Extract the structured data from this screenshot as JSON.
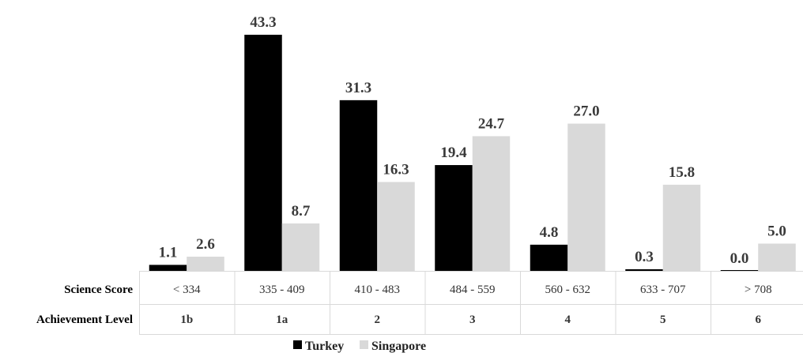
{
  "chart_data": {
    "type": "bar",
    "categories": [
      "< 334",
      "335 - 409",
      "410 - 483",
      "484 - 559",
      "560 - 632",
      "633 - 707",
      "> 708"
    ],
    "achievement_levels": [
      "1b",
      "1a",
      "2",
      "3",
      "4",
      "5",
      "6"
    ],
    "row_labels": {
      "score": "Science Score",
      "level": "Achievement Level"
    },
    "series": [
      {
        "name": "Turkey",
        "color": "#000000",
        "values": [
          1.1,
          43.3,
          31.3,
          19.4,
          4.8,
          0.3,
          0.0
        ],
        "labels": [
          "1.1",
          "43.3",
          "31.3",
          "19.4",
          "4.8",
          "0.3",
          "0.0"
        ]
      },
      {
        "name": "Singapore",
        "color": "#d9d9d9",
        "values": [
          2.6,
          8.7,
          16.3,
          24.7,
          27.0,
          15.8,
          5.0
        ],
        "labels": [
          "2.6",
          "8.7",
          "16.3",
          "24.7",
          "27.0",
          "15.8",
          "5.0"
        ]
      }
    ],
    "legend_position": "bottom-center",
    "grid": false
  }
}
